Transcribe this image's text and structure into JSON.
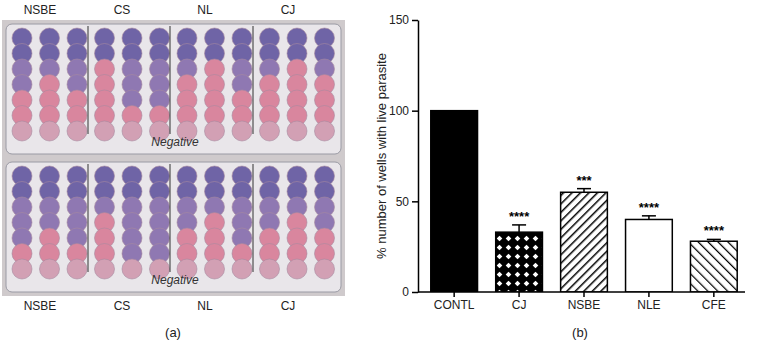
{
  "figure": {
    "panel_labels": [
      "(a)",
      "(b)"
    ]
  },
  "photo": {
    "top_labels": [
      "NSBE",
      "CS",
      "NL",
      "CJ"
    ],
    "bottom_labels": [
      "NSBE",
      "CS",
      "NL",
      "CJ"
    ],
    "plate_labels": [
      "Negative",
      "Negative"
    ]
  },
  "chart_data": {
    "type": "bar",
    "y_label": "% number of wells with live parasite",
    "categories": [
      "CONTL",
      "CJ",
      "NSBE",
      "NLE",
      "CFE"
    ],
    "values": [
      100,
      33,
      55,
      40,
      28
    ],
    "errors": [
      null,
      4,
      2,
      2,
      1
    ],
    "colors": [
      "#000000",
      "#000000",
      "#000000",
      "#ffffff",
      "#000000"
    ],
    "ylim": [
      0,
      150
    ],
    "yticks": [
      0,
      50,
      100,
      150
    ],
    "annotations": [
      {
        "index": 1,
        "text": "****"
      },
      {
        "index": 2,
        "text": "***"
      },
      {
        "index": 3,
        "text": "****"
      },
      {
        "index": 4,
        "text": "****"
      }
    ]
  }
}
